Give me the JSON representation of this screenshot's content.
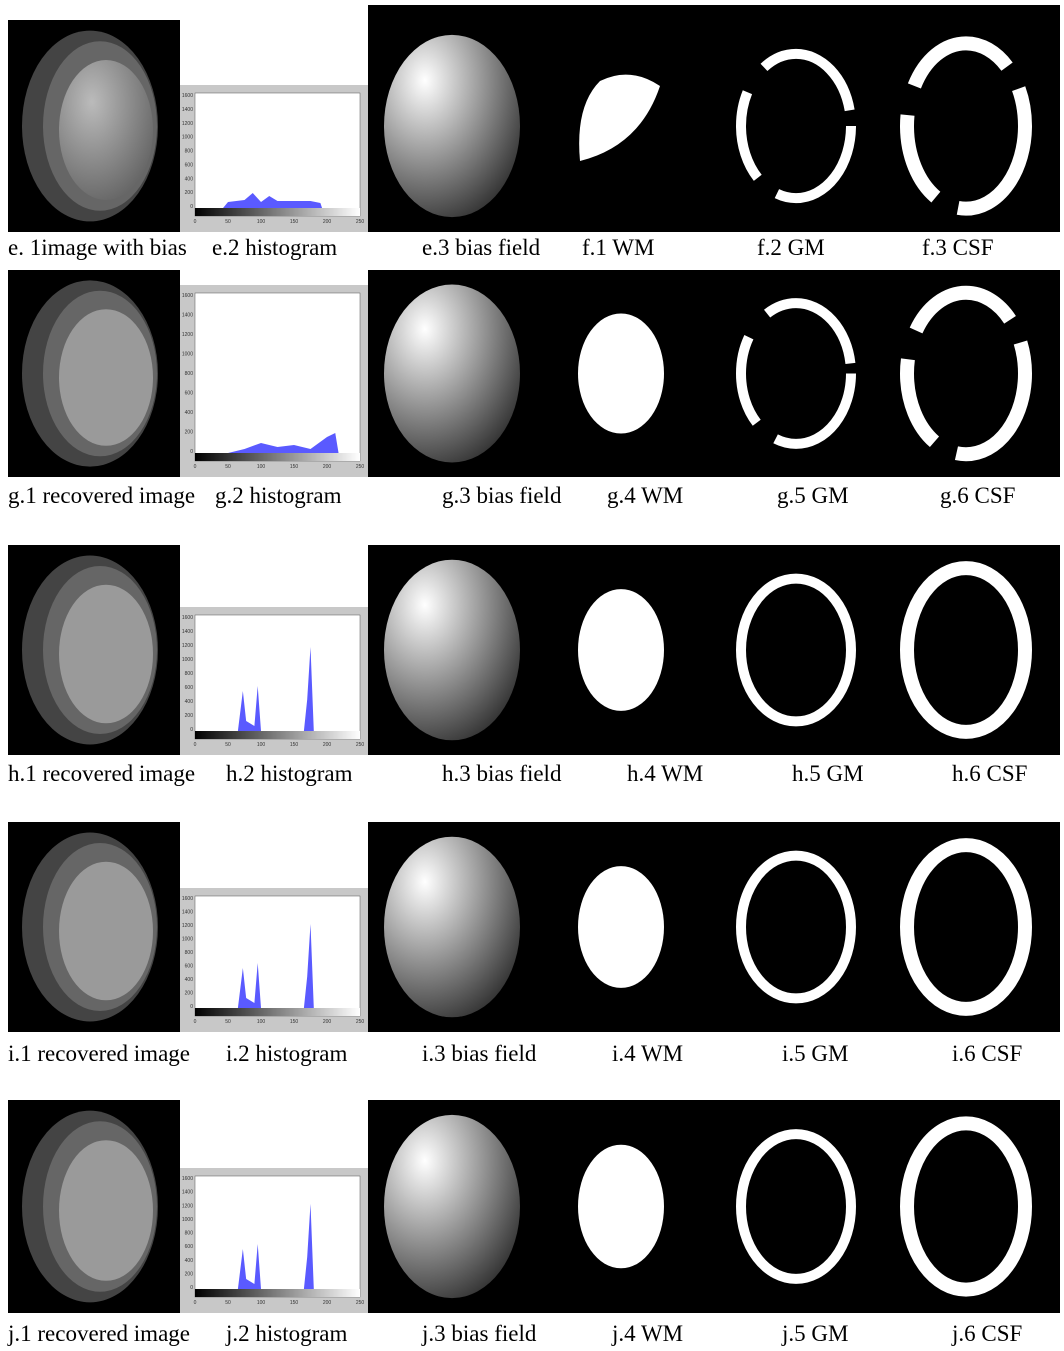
{
  "rows": [
    {
      "captions": [
        "e. 1image with bias",
        "e.2 histogram",
        "e.3 bias field",
        "f.1 WM",
        "f.2 GM",
        "f.3 CSF"
      ]
    },
    {
      "captions": [
        "g.1 recovered image",
        "g.2 histogram",
        "g.3 bias field",
        "g.4 WM",
        "g.5 GM",
        "g.6 CSF"
      ]
    },
    {
      "captions": [
        "h.1 recovered image",
        "h.2 histogram",
        "h.3 bias field",
        "h.4 WM",
        "h.5 GM",
        "h.6 CSF"
      ]
    },
    {
      "captions": [
        "i.1 recovered image",
        "i.2 histogram",
        "i.3 bias field",
        "i.4 WM",
        "i.5 GM",
        "i.6 CSF"
      ]
    },
    {
      "captions": [
        "j.1 recovered image",
        "j.2 histogram",
        "j.3 bias field",
        "j.4 WM",
        "j.5 GM",
        "j.6 CSF"
      ]
    }
  ],
  "histogram_axis": {
    "yticks": [
      "1600",
      "1400",
      "1200",
      "1000",
      "800",
      "600",
      "400",
      "200",
      "0"
    ],
    "xticks": [
      "0",
      "50",
      "100",
      "150",
      "200",
      "250"
    ]
  }
}
